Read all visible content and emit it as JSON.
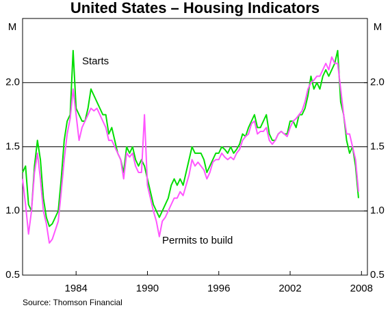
{
  "chart_data": {
    "type": "line",
    "title": "United States – Housing Indicators",
    "y_label": "M",
    "y2_label": "M",
    "source": "Source: Thomson Financial",
    "xlim": [
      1979.5,
      2008.5
    ],
    "xticks": [
      1984,
      1990,
      1996,
      2002,
      2008
    ],
    "ylim": [
      0.5,
      2.5
    ],
    "yticks": [
      {
        "value": 0.5,
        "label": "0.5"
      },
      {
        "value": 1,
        "label": "1.0"
      },
      {
        "value": 1.5,
        "label": "1.5"
      },
      {
        "value": 2,
        "label": "2.0"
      }
    ],
    "y2lim": [
      0.5,
      2.5
    ],
    "y2ticks": [
      {
        "value": 0.5,
        "label": "0.5"
      },
      {
        "value": 1,
        "label": "1.0"
      },
      {
        "value": 1.5,
        "label": "1.5"
      },
      {
        "value": 2,
        "label": "2.0"
      }
    ],
    "grid": true,
    "x": [
      1979.5,
      1979.75,
      1980,
      1980.25,
      1980.5,
      1980.75,
      1981,
      1981.25,
      1981.5,
      1981.75,
      1982,
      1982.25,
      1982.5,
      1982.75,
      1983,
      1983.25,
      1983.5,
      1983.75,
      1984,
      1984.25,
      1984.5,
      1984.75,
      1985,
      1985.25,
      1985.5,
      1985.75,
      1986,
      1986.25,
      1986.5,
      1986.75,
      1987,
      1987.25,
      1987.5,
      1987.75,
      1988,
      1988.25,
      1988.5,
      1988.75,
      1989,
      1989.25,
      1989.5,
      1989.75,
      1990,
      1990.25,
      1990.5,
      1990.75,
      1991,
      1991.25,
      1991.5,
      1991.75,
      1992,
      1992.25,
      1992.5,
      1992.75,
      1993,
      1993.25,
      1993.5,
      1993.75,
      1994,
      1994.25,
      1994.5,
      1994.75,
      1995,
      1995.25,
      1995.5,
      1995.75,
      1996,
      1996.25,
      1996.5,
      1996.75,
      1997,
      1997.25,
      1997.5,
      1997.75,
      1998,
      1998.25,
      1998.5,
      1998.75,
      1999,
      1999.25,
      1999.5,
      1999.75,
      2000,
      2000.25,
      2000.5,
      2000.75,
      2001,
      2001.25,
      2001.5,
      2001.75,
      2002,
      2002.25,
      2002.5,
      2002.75,
      2003,
      2003.25,
      2003.5,
      2003.75,
      2004,
      2004.25,
      2004.5,
      2004.75,
      2005,
      2005.25,
      2005.5,
      2005.75,
      2006,
      2006.25,
      2006.5,
      2006.75,
      2007,
      2007.25,
      2007.5,
      2007.75
    ],
    "series": [
      {
        "name": "Starts",
        "color": "#00dd00",
        "values": [
          1.3,
          1.35,
          1.05,
          1.0,
          1.35,
          1.55,
          1.4,
          1.1,
          0.95,
          0.88,
          0.9,
          0.95,
          1.0,
          1.25,
          1.55,
          1.7,
          1.75,
          2.25,
          1.8,
          1.75,
          1.7,
          1.7,
          1.8,
          1.95,
          1.9,
          1.85,
          1.8,
          1.75,
          1.75,
          1.6,
          1.65,
          1.55,
          1.45,
          1.4,
          1.3,
          1.5,
          1.45,
          1.5,
          1.4,
          1.35,
          1.4,
          1.35,
          1.25,
          1.15,
          1.05,
          1.0,
          0.95,
          1.0,
          1.05,
          1.1,
          1.2,
          1.25,
          1.2,
          1.25,
          1.2,
          1.3,
          1.4,
          1.5,
          1.45,
          1.45,
          1.45,
          1.4,
          1.3,
          1.35,
          1.4,
          1.45,
          1.45,
          1.5,
          1.48,
          1.45,
          1.5,
          1.45,
          1.48,
          1.52,
          1.6,
          1.58,
          1.65,
          1.7,
          1.75,
          1.65,
          1.65,
          1.7,
          1.75,
          1.6,
          1.55,
          1.55,
          1.6,
          1.62,
          1.6,
          1.6,
          1.7,
          1.7,
          1.65,
          1.75,
          1.75,
          1.8,
          1.9,
          2.05,
          1.95,
          2.0,
          1.95,
          2.05,
          2.1,
          2.05,
          2.1,
          2.15,
          2.25,
          1.85,
          1.75,
          1.55,
          1.45,
          1.5,
          1.35,
          1.1
        ]
      },
      {
        "name": "Permits to build",
        "color": "#ff55ff",
        "values": [
          1.25,
          1.05,
          0.82,
          1.0,
          1.3,
          1.45,
          1.25,
          1.0,
          0.9,
          0.75,
          0.78,
          0.85,
          0.92,
          1.15,
          1.4,
          1.6,
          1.72,
          1.95,
          1.75,
          1.55,
          1.65,
          1.7,
          1.75,
          1.8,
          1.78,
          1.8,
          1.75,
          1.7,
          1.65,
          1.55,
          1.55,
          1.5,
          1.45,
          1.4,
          1.25,
          1.45,
          1.42,
          1.45,
          1.35,
          1.3,
          1.3,
          1.75,
          1.2,
          1.1,
          1.0,
          0.92,
          0.8,
          0.92,
          0.95,
          1.0,
          1.05,
          1.1,
          1.1,
          1.15,
          1.12,
          1.2,
          1.28,
          1.4,
          1.35,
          1.38,
          1.35,
          1.32,
          1.25,
          1.3,
          1.38,
          1.4,
          1.4,
          1.45,
          1.42,
          1.4,
          1.42,
          1.4,
          1.45,
          1.48,
          1.55,
          1.58,
          1.6,
          1.68,
          1.7,
          1.6,
          1.62,
          1.62,
          1.65,
          1.55,
          1.52,
          1.55,
          1.6,
          1.62,
          1.6,
          1.58,
          1.65,
          1.7,
          1.72,
          1.75,
          1.78,
          1.85,
          1.95,
          2.0,
          2.02,
          2.05,
          2.05,
          2.1,
          2.15,
          2.1,
          2.2,
          2.15,
          2.15,
          1.95,
          1.75,
          1.6,
          1.6,
          1.5,
          1.4,
          1.15
        ]
      }
    ]
  }
}
